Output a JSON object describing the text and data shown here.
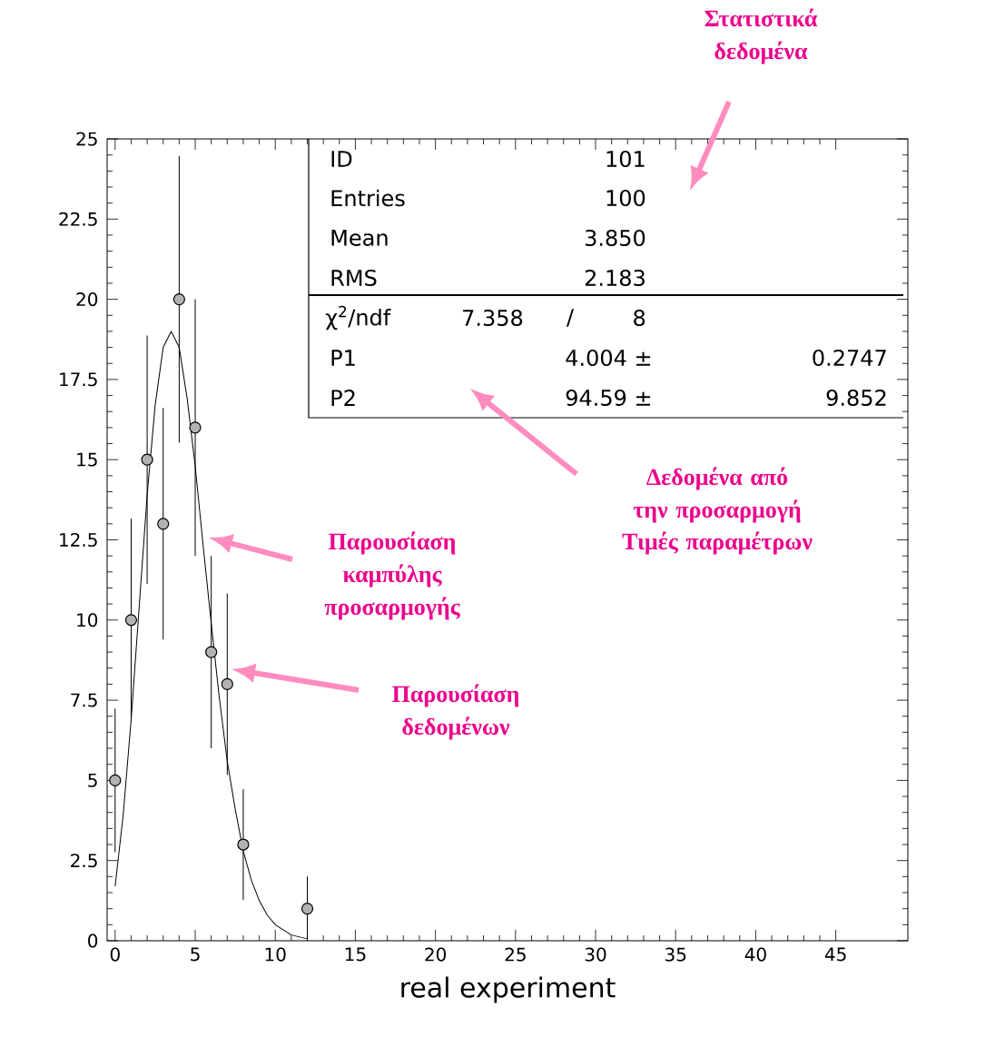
{
  "chart_data": {
    "type": "scatter",
    "xlabel": "real experiment",
    "xlim": [
      -0.5,
      49.5
    ],
    "ylim": [
      0,
      25
    ],
    "xticks": [
      0,
      5,
      10,
      15,
      20,
      25,
      30,
      35,
      40,
      45
    ],
    "yticks": [
      0,
      2.5,
      5,
      7.5,
      10,
      12.5,
      15,
      17.5,
      20,
      22.5,
      25
    ],
    "grid": false,
    "series": [
      {
        "color": "#000000",
        "marker": "circle",
        "x": [
          0,
          1,
          2,
          3,
          4,
          5,
          6,
          7,
          8,
          12
        ],
        "values": [
          5,
          10,
          15,
          13,
          20,
          16,
          9,
          8,
          3,
          1
        ],
        "errors": [
          2.24,
          3.16,
          3.87,
          3.61,
          4.47,
          4,
          3,
          2.83,
          1.73,
          1
        ]
      },
      {
        "type": "line",
        "color": "#000000",
        "marker": "none",
        "x": [
          0,
          0.5,
          1,
          1.5,
          2,
          2.5,
          3,
          3.5,
          4,
          4.5,
          5,
          5.5,
          6,
          6.5,
          7,
          7.5,
          8,
          8.5,
          9,
          9.5,
          10,
          11,
          12
        ],
        "values": [
          1.7,
          3.9,
          6.9,
          10.4,
          13.9,
          16.7,
          18.5,
          19,
          18.5,
          16.9,
          14.8,
          12.3,
          9.9,
          7.6,
          5.6,
          4.1,
          2.8,
          1.9,
          1.25,
          0.8,
          0.5,
          0.18,
          0.06
        ]
      }
    ],
    "annotations": [
      "ID",
      "101",
      "Entries",
      "100",
      "Mean",
      "3.850",
      "RMS",
      "2.183",
      "χ$^{2}$/ndf",
      "7.358",
      "/",
      "8",
      "P1",
      "4.004 ±",
      "0.2747",
      "P2",
      "94.59 ±",
      "9.852",
      "Στατιστικά δεδομένα",
      "Δεδομένα από την προσαρμογή",
      "Τιμές παραμέτρων",
      "Παρουσίαση καμπύλης προσαρμογής",
      "Παρουσίαση δεδομένων"
    ]
  }
}
